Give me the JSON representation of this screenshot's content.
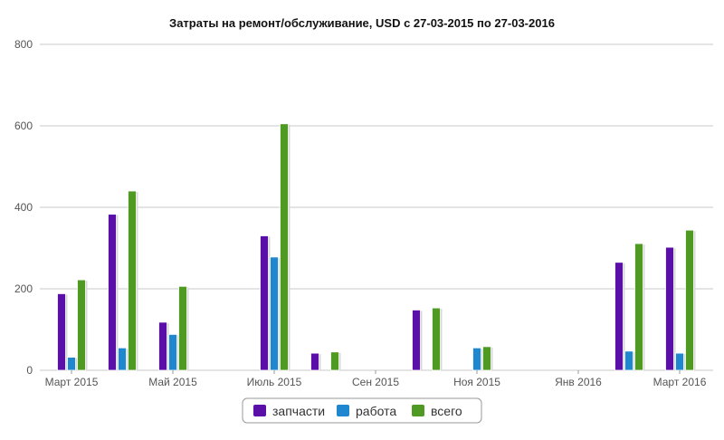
{
  "chart_data": {
    "type": "bar",
    "title": "Затраты на ремонт/обслуживание, USD с 27-03-2015 по 27-03-2016",
    "xlabel": "",
    "ylabel": "",
    "ylim": [
      0,
      800
    ],
    "yticks": [
      "0",
      "200",
      "400",
      "600",
      "800"
    ],
    "x_tick_labels": [
      "Март 2015",
      "Май 2015",
      "Июль 2015",
      "Сен 2015",
      "Ноя 2015",
      "Янв 2016",
      "Март 2016"
    ],
    "categories": [
      "Мар 2015",
      "Апр 2015",
      "Май 2015",
      "Июн 2015",
      "Июл 2015",
      "Авг 2015",
      "Сен 2015",
      "Окт 2015",
      "Ноя 2015",
      "Дек 2015",
      "Янв 2016",
      "Фев 2016",
      "Мар 2016"
    ],
    "series": [
      {
        "name": "запчасти",
        "color": "#5a0fa6",
        "values": [
          188,
          383,
          118,
          0,
          330,
          42,
          0,
          148,
          0,
          0,
          0,
          265,
          302
        ]
      },
      {
        "name": "работа",
        "color": "#1f86d0",
        "values": [
          32,
          55,
          88,
          0,
          278,
          0,
          0,
          0,
          55,
          0,
          0,
          47,
          42
        ]
      },
      {
        "name": "всего",
        "color": "#4e9a22",
        "values": [
          222,
          440,
          206,
          0,
          605,
          45,
          0,
          153,
          58,
          0,
          0,
          311,
          344
        ]
      }
    ],
    "grid": true,
    "legend": "bottom-center"
  }
}
